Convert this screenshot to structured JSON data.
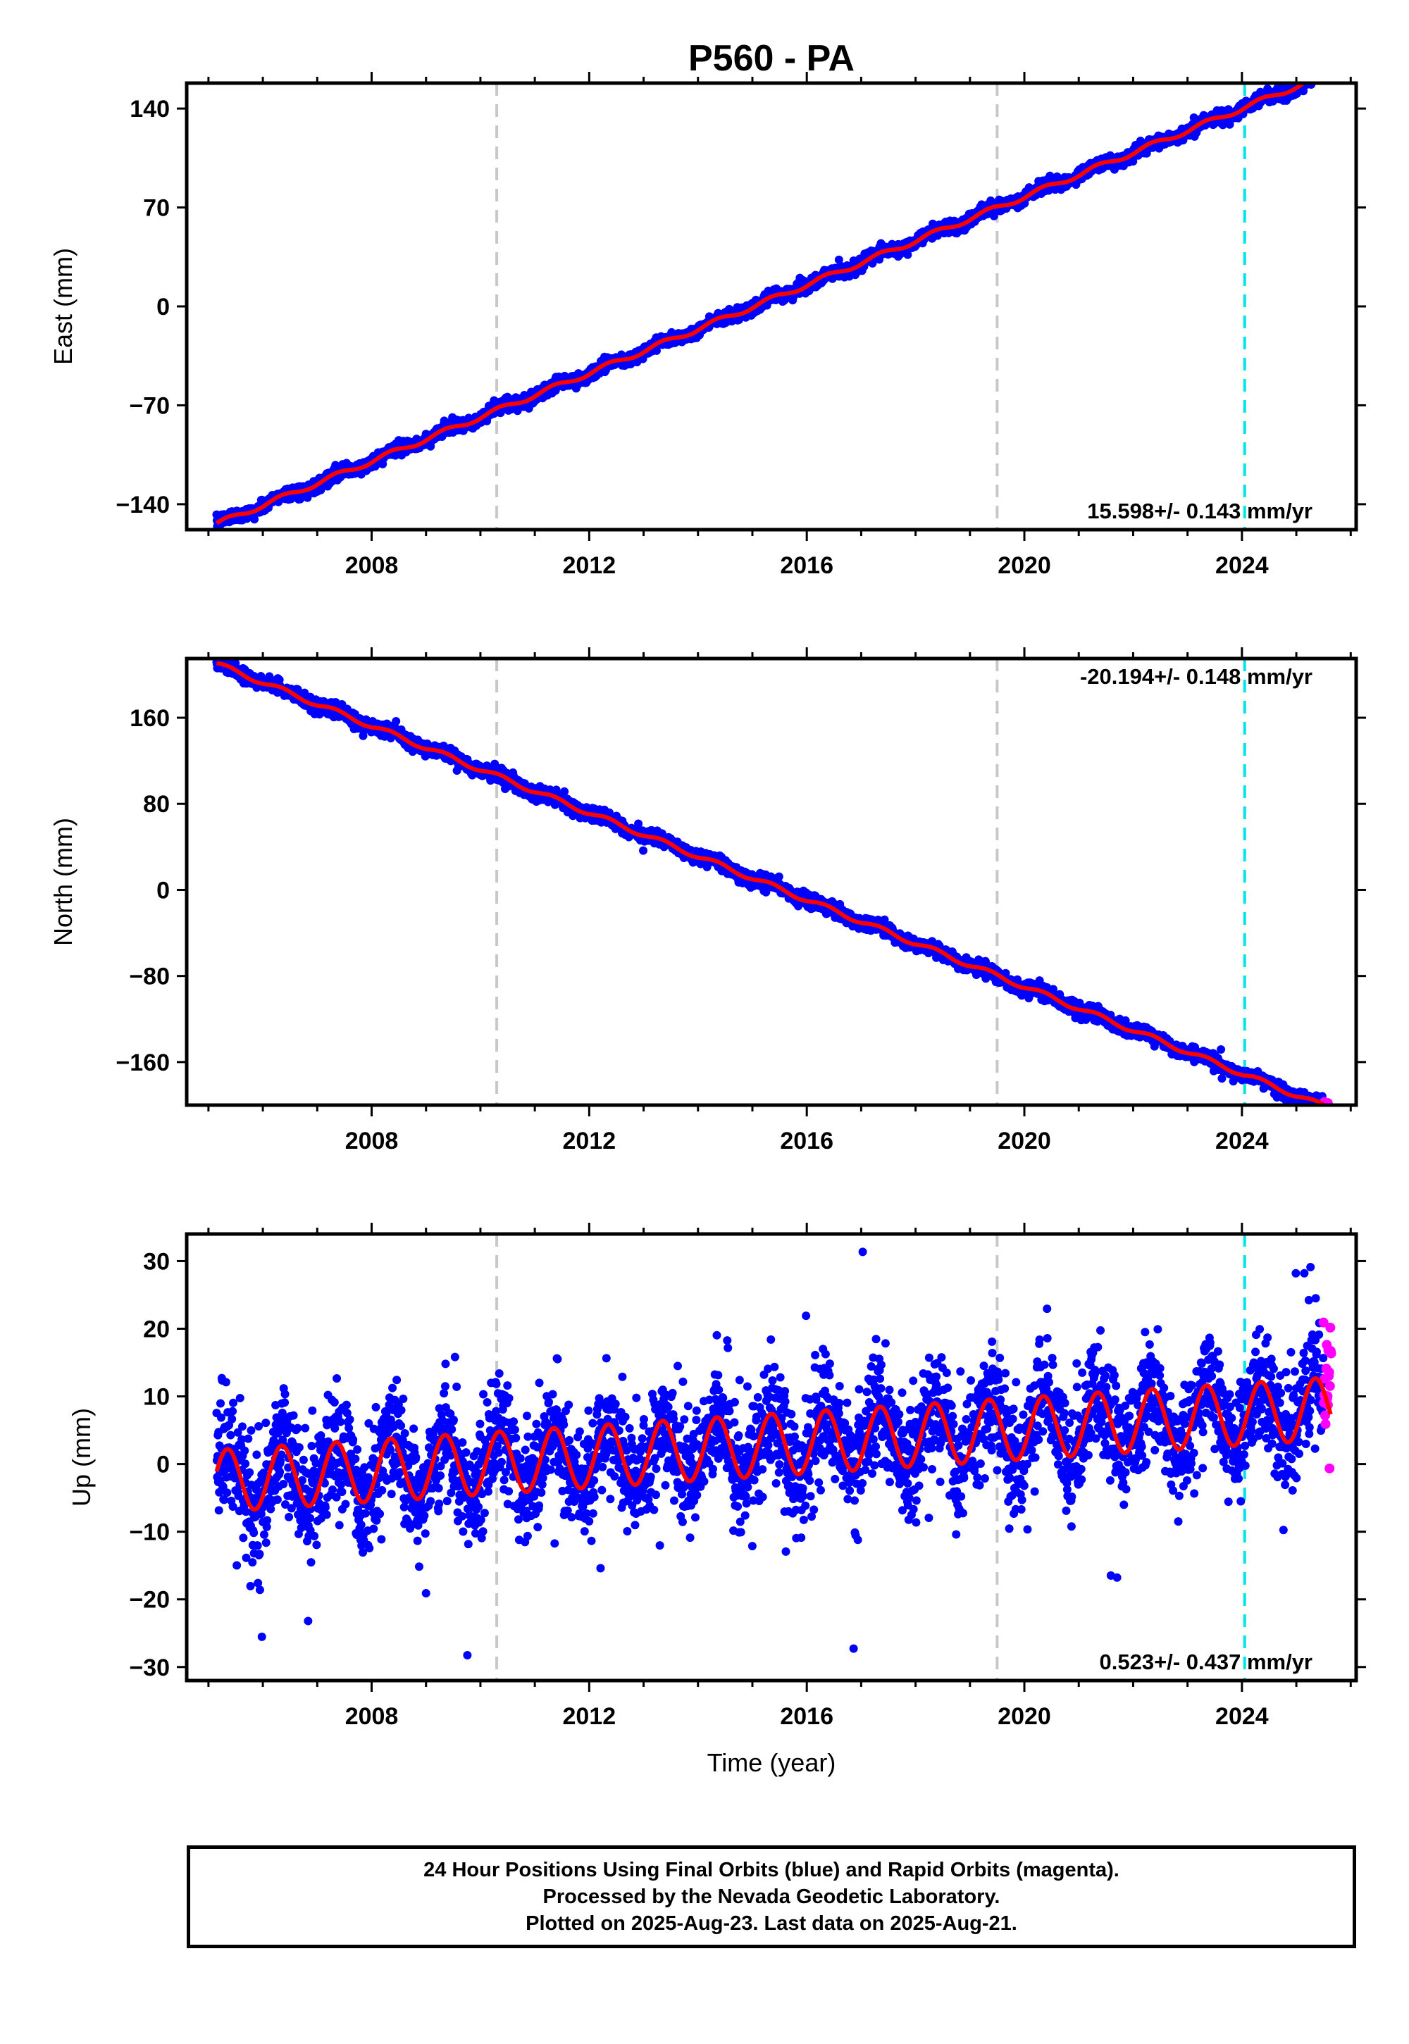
{
  "title": "P560 - PA",
  "xlabel": "Time (year)",
  "footer": {
    "line1": "24 Hour Positions Using Final Orbits (blue) and Rapid Orbits (magenta).",
    "line2": "Processed by the Nevada Geodetic Laboratory.",
    "line3": "Plotted on 2025-Aug-23. Last data on 2025-Aug-21."
  },
  "colors": {
    "final_points": "#0000ff",
    "rapid_points": "#ff00ff",
    "model_fit": "#ff0000",
    "equipment_change_line": "#c8c8c8",
    "event_line": "#00e5e5"
  },
  "chart_data": [
    {
      "type": "scatter",
      "ylabel": "East (mm)",
      "xlim": [
        2004.6,
        2026.1
      ],
      "ylim": [
        -158,
        158
      ],
      "xticks": [
        2008,
        2012,
        2016,
        2020,
        2024
      ],
      "yticks": [
        -140,
        -70,
        0,
        70,
        140
      ],
      "rate_label": "15.598+/- 0.143 mm/yr",
      "rate_position": "bottom-right",
      "model": {
        "intercept": -154,
        "rate": 15.598,
        "annual_amp": 1.8,
        "start": 2005.15
      },
      "noise_mm": 2.2,
      "outlier_rate": 0.0,
      "gray_lines": [
        2010.3,
        2019.5
      ],
      "cyan_lines": [
        2024.05
      ],
      "series": [
        {
          "name": "Final Orbits (blue)",
          "x_range": [
            2005.15,
            2025.5
          ],
          "count": 3400
        },
        {
          "name": "Rapid Orbits (magenta)",
          "x_range": [
            2025.5,
            2025.64
          ],
          "count": 10
        }
      ]
    },
    {
      "type": "scatter",
      "ylabel": "North (mm)",
      "xlim": [
        2004.6,
        2026.1
      ],
      "ylim": [
        -200,
        215
      ],
      "xticks": [
        2008,
        2012,
        2016,
        2020,
        2024
      ],
      "yticks": [
        -160,
        -80,
        0,
        80,
        160
      ],
      "rate_label": "-20.194+/- 0.148 mm/yr",
      "rate_position": "top-right",
      "model": {
        "intercept": 210,
        "rate": -20.194,
        "annual_amp": 2.2,
        "start": 2005.15
      },
      "noise_mm": 3.0,
      "outlier_rate": 0.01,
      "gray_lines": [
        2010.3,
        2019.5
      ],
      "cyan_lines": [
        2024.05
      ],
      "series": [
        {
          "name": "Final Orbits (blue)",
          "x_range": [
            2005.15,
            2025.5
          ],
          "count": 3400
        },
        {
          "name": "Rapid Orbits (magenta)",
          "x_range": [
            2025.5,
            2025.64
          ],
          "count": 10
        }
      ]
    },
    {
      "type": "scatter",
      "ylabel": "Up (mm)",
      "xlim": [
        2004.6,
        2026.1
      ],
      "ylim": [
        -32,
        34
      ],
      "xticks": [
        2008,
        2012,
        2016,
        2020,
        2024
      ],
      "yticks": [
        -30,
        -20,
        -10,
        0,
        10,
        20,
        30
      ],
      "rate_label": "0.523+/- 0.437 mm/yr",
      "rate_position": "bottom-right",
      "model": {
        "intercept": -2.5,
        "rate": 0.523,
        "annual_amp": 4.6,
        "start": 2005.15
      },
      "noise_mm": 4.2,
      "outlier_rate": 0.012,
      "gray_lines": [
        2010.3,
        2019.5
      ],
      "cyan_lines": [
        2024.05
      ],
      "series": [
        {
          "name": "Final Orbits (blue)",
          "x_range": [
            2005.15,
            2025.5
          ],
          "count": 3400
        },
        {
          "name": "Rapid Orbits (magenta)",
          "x_range": [
            2025.5,
            2025.64
          ],
          "count": 20
        }
      ]
    }
  ]
}
